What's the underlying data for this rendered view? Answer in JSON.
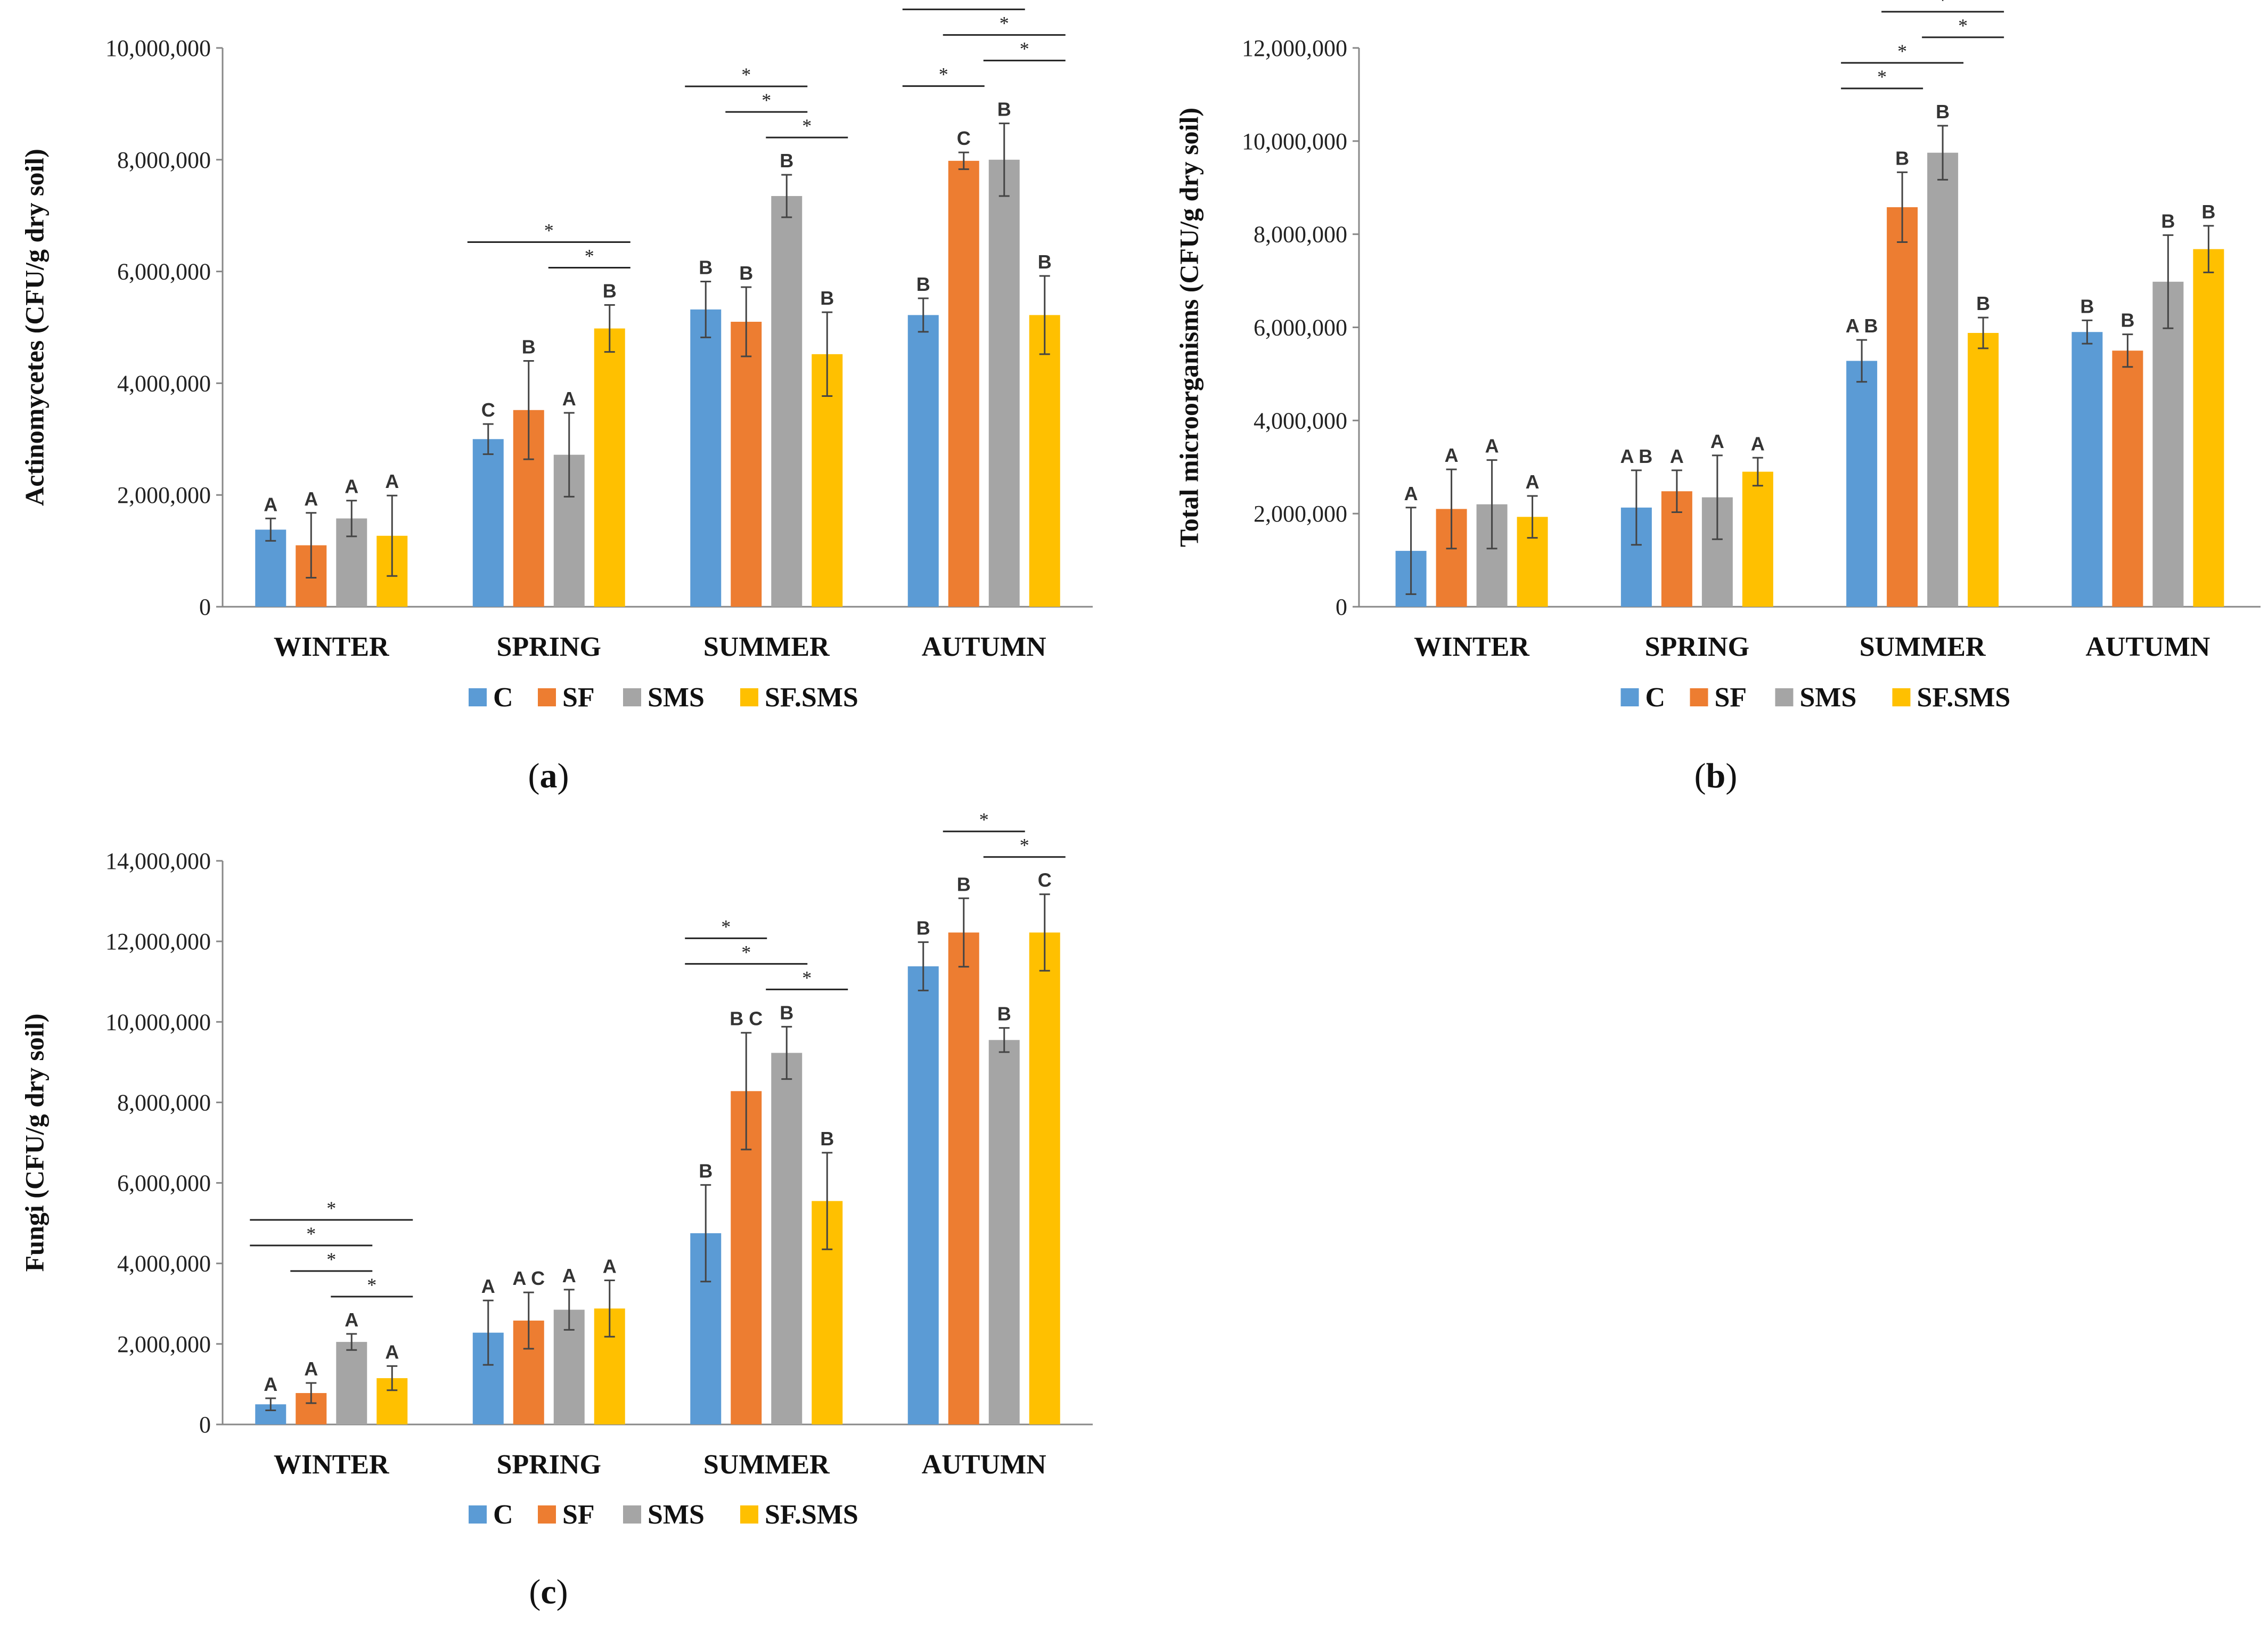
{
  "colors": {
    "C": "#5b9bd5",
    "SF": "#ed7d31",
    "SMS": "#a5a5a5",
    "SF.SMS": "#ffc000"
  },
  "chart_data": [
    {
      "type": "bar",
      "panel": "(a)",
      "ylabel": "Actinomycetes (CFU/g dry soil)",
      "ylim": [
        0,
        10000000
      ],
      "ytick_step": 2000000,
      "yticks": [
        "0",
        "2,000,000",
        "4,000,000",
        "6,000,000",
        "8,000,000",
        "10,000,000"
      ],
      "categories": [
        "WINTER",
        "SPRING",
        "SUMMER",
        "AUTUMN"
      ],
      "legend": [
        "C",
        "SF",
        "SMS",
        "SF.SMS"
      ],
      "series": [
        {
          "name": "C",
          "values": [
            1380000,
            3000000,
            5320000,
            5220000
          ],
          "errors": [
            200000,
            270000,
            500000,
            300000
          ],
          "letters": [
            "A",
            "C",
            "B",
            "B"
          ]
        },
        {
          "name": "SF",
          "values": [
            1100000,
            3520000,
            5100000,
            7980000
          ],
          "errors": [
            580000,
            880000,
            620000,
            150000
          ],
          "letters": [
            "A",
            "B",
            "B",
            "C"
          ]
        },
        {
          "name": "SMS",
          "values": [
            1580000,
            2720000,
            7350000,
            8000000
          ],
          "errors": [
            320000,
            750000,
            380000,
            650000
          ],
          "letters": [
            "A",
            "A",
            "B",
            "B"
          ]
        },
        {
          "name": "SF.SMS",
          "values": [
            1270000,
            4980000,
            4520000,
            5220000
          ],
          "errors": [
            720000,
            420000,
            750000,
            700000
          ],
          "letters": [
            "A",
            "B",
            "B",
            "B"
          ]
        }
      ],
      "significance": [
        {
          "category": 1,
          "from": 0,
          "to": 3,
          "level": 1,
          "label": "*"
        },
        {
          "category": 1,
          "from": 2,
          "to": 3,
          "level": 0,
          "label": "*"
        },
        {
          "category": 2,
          "from": 0,
          "to": 2,
          "level": 2,
          "label": "*"
        },
        {
          "category": 2,
          "from": 1,
          "to": 2,
          "level": 1,
          "label": "*"
        },
        {
          "category": 2,
          "from": 2,
          "to": 3,
          "level": 0,
          "label": "*"
        },
        {
          "category": 3,
          "from": 0,
          "to": 1,
          "level": 0,
          "label": "*"
        },
        {
          "category": 3,
          "from": 0,
          "to": 2,
          "level": 3,
          "label": "*"
        },
        {
          "category": 3,
          "from": 1,
          "to": 3,
          "level": 2,
          "label": "*"
        },
        {
          "category": 3,
          "from": 2,
          "to": 3,
          "level": 1,
          "label": "*"
        }
      ]
    },
    {
      "type": "bar",
      "panel": "(b)",
      "ylabel": "Total microorganisms (CFU/g dry soil)",
      "ylim": [
        0,
        12000000
      ],
      "ytick_step": 2000000,
      "yticks": [
        "0",
        "2,000,000",
        "4,000,000",
        "6,000,000",
        "8,000,000",
        "10,000,000",
        "12,000,000"
      ],
      "categories": [
        "WINTER",
        "SPRING",
        "SUMMER",
        "AUTUMN"
      ],
      "legend": [
        "C",
        "SF",
        "SMS",
        "SF.SMS"
      ],
      "series": [
        {
          "name": "C",
          "values": [
            1200000,
            2130000,
            5280000,
            5900000
          ],
          "errors": [
            930000,
            800000,
            450000,
            250000
          ],
          "letters": [
            "A",
            "A B",
            "A B",
            "B"
          ]
        },
        {
          "name": "SF",
          "values": [
            2100000,
            2480000,
            8580000,
            5500000
          ],
          "errors": [
            850000,
            450000,
            750000,
            350000
          ],
          "letters": [
            "A",
            "A",
            "B",
            "B"
          ]
        },
        {
          "name": "SMS",
          "values": [
            2200000,
            2350000,
            9750000,
            6980000
          ],
          "errors": [
            950000,
            900000,
            580000,
            1000000
          ],
          "letters": [
            "A",
            "A",
            "B",
            "B"
          ]
        },
        {
          "name": "SF.SMS",
          "values": [
            1930000,
            2900000,
            5880000,
            7680000
          ],
          "errors": [
            450000,
            300000,
            330000,
            500000
          ],
          "letters": [
            "A",
            "A",
            "B",
            "B"
          ]
        }
      ],
      "significance": [
        {
          "category": 2,
          "from": 0,
          "to": 1,
          "level": 0,
          "label": "*"
        },
        {
          "category": 2,
          "from": 0,
          "to": 2,
          "level": 1,
          "label": "*"
        },
        {
          "category": 2,
          "from": 2,
          "to": 3,
          "level": 2,
          "label": "*"
        },
        {
          "category": 2,
          "from": 1,
          "to": 3,
          "level": 3,
          "label": "*"
        }
      ]
    },
    {
      "type": "bar",
      "panel": "(c)",
      "ylabel": "Fungi (CFU/g dry soil)",
      "ylim": [
        0,
        14000000
      ],
      "ytick_step": 2000000,
      "yticks": [
        "0",
        "2,000,000",
        "4,000,000",
        "6,000,000",
        "8,000,000",
        "10,000,000",
        "12,000,000",
        "14,000,000"
      ],
      "categories": [
        "WINTER",
        "SPRING",
        "SUMMER",
        "AUTUMN"
      ],
      "legend": [
        "C",
        "SF",
        "SMS",
        "SF.SMS"
      ],
      "series": [
        {
          "name": "C",
          "values": [
            500000,
            2280000,
            4750000,
            11380000
          ],
          "errors": [
            150000,
            800000,
            1200000,
            600000
          ],
          "letters": [
            "A",
            "A",
            "B",
            "B"
          ]
        },
        {
          "name": "SF",
          "values": [
            780000,
            2580000,
            8280000,
            12220000
          ],
          "errors": [
            250000,
            700000,
            1450000,
            850000
          ],
          "letters": [
            "A",
            "A C",
            "B C",
            "B"
          ]
        },
        {
          "name": "SMS",
          "values": [
            2050000,
            2850000,
            9230000,
            9550000
          ],
          "errors": [
            200000,
            500000,
            650000,
            300000
          ],
          "letters": [
            "A",
            "A",
            "B",
            "B"
          ]
        },
        {
          "name": "SF.SMS",
          "values": [
            1150000,
            2880000,
            5550000,
            12220000
          ],
          "errors": [
            300000,
            700000,
            1200000,
            950000
          ],
          "letters": [
            "A",
            "A",
            "B",
            "C"
          ]
        }
      ],
      "significance": [
        {
          "category": 0,
          "from": 2,
          "to": 3,
          "level": 0,
          "label": "*"
        },
        {
          "category": 0,
          "from": 1,
          "to": 2,
          "level": 1,
          "label": "*"
        },
        {
          "category": 0,
          "from": 0,
          "to": 2,
          "level": 2,
          "label": "*"
        },
        {
          "category": 0,
          "from": 0,
          "to": 3,
          "level": 3,
          "label": "*"
        },
        {
          "category": 2,
          "from": 2,
          "to": 3,
          "level": 0,
          "label": "*"
        },
        {
          "category": 2,
          "from": 0,
          "to": 2,
          "level": 1,
          "label": "*"
        },
        {
          "category": 2,
          "from": 0,
          "to": 1,
          "level": 2,
          "label": "*"
        },
        {
          "category": 3,
          "from": 2,
          "to": 3,
          "level": 0,
          "label": "*"
        },
        {
          "category": 3,
          "from": 1,
          "to": 2,
          "level": 1,
          "label": "*"
        }
      ]
    }
  ]
}
